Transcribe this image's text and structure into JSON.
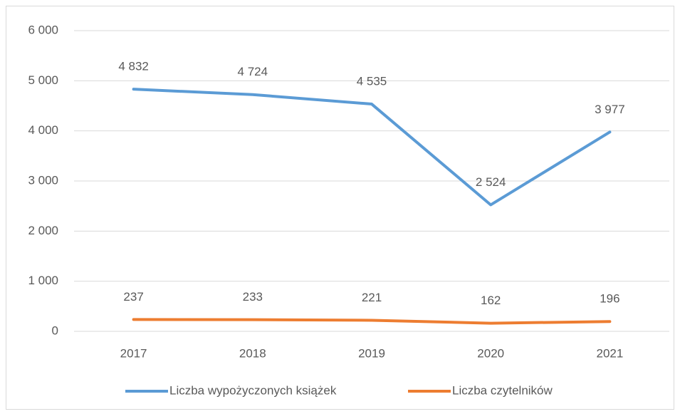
{
  "chart_data": {
    "type": "line",
    "categories": [
      "2017",
      "2018",
      "2019",
      "2020",
      "2021"
    ],
    "series": [
      {
        "name": "Liczba wypożyczonych książek",
        "color": "#5b9bd5",
        "values": [
          4832,
          4724,
          4535,
          2524,
          3977
        ],
        "value_labels": [
          "4 832",
          "4 724",
          "4 535",
          "2 524",
          "3 977"
        ]
      },
      {
        "name": "Liczba czytelników",
        "color": "#ed7d31",
        "values": [
          237,
          233,
          221,
          162,
          196
        ],
        "value_labels": [
          "237",
          "233",
          "221",
          "162",
          "196"
        ]
      }
    ],
    "ylim": [
      0,
      6000
    ],
    "yticks": [
      0,
      {
        "value": 1000,
        "label": "1 000"
      },
      {
        "value": 2000,
        "label": "2 000"
      },
      {
        "value": 3000,
        "label": "3 000"
      },
      {
        "value": 4000,
        "label": "4 000"
      },
      {
        "value": 5000,
        "label": "5 000"
      },
      {
        "value": 6000,
        "label": "6 000"
      }
    ],
    "grid": true,
    "legend": "bottom"
  }
}
